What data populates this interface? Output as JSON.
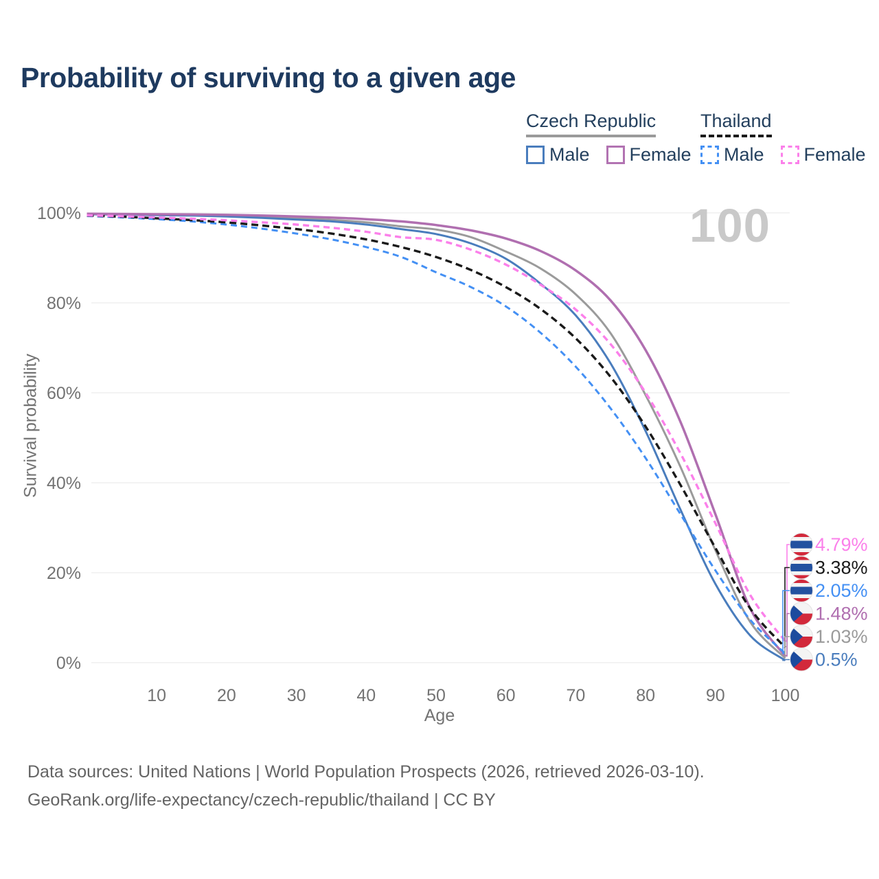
{
  "title": "Probability of surviving to a given age",
  "legend": {
    "groups": [
      {
        "label": "Czech Republic",
        "underline_style": "solid",
        "underline_color": "#9a9a9a",
        "items": [
          {
            "label": "Male",
            "color": "#4a7dbd",
            "dash": false
          },
          {
            "label": "Female",
            "color": "#b273b2",
            "dash": false
          }
        ]
      },
      {
        "label": "Thailand",
        "underline_style": "dashed",
        "underline_color": "#1a1a1a",
        "items": [
          {
            "label": "Male",
            "color": "#4490f4",
            "dash": true
          },
          {
            "label": "Female",
            "color": "#fb80ea",
            "dash": true
          }
        ]
      }
    ]
  },
  "chart_data": {
    "type": "line",
    "title": "Probability of surviving to a given age",
    "xlabel": "Age",
    "ylabel": "Survival probability",
    "annotation": "100",
    "grid": true,
    "xlim": [
      0,
      101
    ],
    "ylim": [
      0,
      100
    ],
    "x_ticks": [
      10,
      20,
      30,
      40,
      50,
      60,
      70,
      80,
      90,
      100
    ],
    "y_ticks": [
      {
        "value": 0,
        "label": "0%"
      },
      {
        "value": 20,
        "label": "20%"
      },
      {
        "value": 40,
        "label": "40%"
      },
      {
        "value": 60,
        "label": "60%"
      },
      {
        "value": 80,
        "label": "80%"
      },
      {
        "value": 100,
        "label": "100%"
      }
    ],
    "ages": [
      0,
      5,
      10,
      15,
      20,
      25,
      30,
      35,
      40,
      45,
      50,
      55,
      60,
      65,
      70,
      75,
      80,
      85,
      90,
      95,
      100
    ],
    "series": [
      {
        "name": "Czech Republic — Total",
        "country": "Czech Republic",
        "sex": "total",
        "color": "#9b9b9b",
        "dash": null,
        "width": 3,
        "flag": "czech",
        "end_label": "1.03%",
        "values": [
          99.75,
          99.68,
          99.6,
          99.5,
          99.35,
          99.1,
          98.8,
          98.45,
          97.9,
          97.0,
          96.3,
          94.6,
          91.4,
          87.6,
          81.9,
          73.2,
          59.5,
          43.5,
          25.0,
          9.0,
          1.03
        ]
      },
      {
        "name": "Czech Republic — Male",
        "country": "Czech Republic",
        "sex": "male",
        "color": "#4a7dbd",
        "dash": null,
        "width": 3,
        "flag": "czech",
        "end_label": "0.5%",
        "values": [
          99.7,
          99.6,
          99.5,
          99.4,
          99.2,
          98.9,
          98.5,
          98.1,
          97.4,
          96.4,
          95.3,
          93.2,
          89.8,
          84.2,
          77.2,
          66.5,
          51.5,
          34.0,
          17.5,
          6.0,
          0.5
        ]
      },
      {
        "name": "Czech Republic — Female",
        "country": "Czech Republic",
        "sex": "female",
        "color": "#b06fb0",
        "dash": null,
        "width": 3.5,
        "flag": "czech",
        "end_label": "1.48%",
        "values": [
          99.8,
          99.75,
          99.7,
          99.65,
          99.55,
          99.4,
          99.2,
          98.95,
          98.6,
          98.1,
          97.3,
          96.1,
          94.3,
          91.5,
          87.2,
          80.5,
          69.5,
          53.5,
          33.0,
          12.0,
          1.48
        ]
      },
      {
        "name": "Thailand — Male",
        "country": "Thailand",
        "sex": "male",
        "color": "#4490f4",
        "dash": "9 6",
        "width": 3,
        "flag": "thailand",
        "end_label": "2.05%",
        "values": [
          99.3,
          99.0,
          98.6,
          98.1,
          97.4,
          96.5,
          95.4,
          94.1,
          92.4,
          90.2,
          86.8,
          83.5,
          79.2,
          73.3,
          65.8,
          56.5,
          45.5,
          33.0,
          20.5,
          9.5,
          2.05
        ]
      },
      {
        "name": "Thailand — Total",
        "country": "Thailand",
        "sex": "total",
        "color": "#1a1a1a",
        "dash": "10 6",
        "width": 3.4,
        "flag": "thailand",
        "end_label": "3.38%",
        "values": [
          99.4,
          99.15,
          98.8,
          98.4,
          97.9,
          97.2,
          96.4,
          95.4,
          94.1,
          92.4,
          90.2,
          87.3,
          83.5,
          78.6,
          72.1,
          63.5,
          52.5,
          39.5,
          25.5,
          12.0,
          3.38
        ]
      },
      {
        "name": "Thailand — Female",
        "country": "Thailand",
        "sex": "female",
        "color": "#fb80ea",
        "dash": "9 6",
        "width": 3.4,
        "flag": "thailand",
        "end_label": "4.79%",
        "values": [
          99.45,
          99.25,
          99.0,
          98.7,
          98.35,
          97.9,
          97.4,
          96.7,
          95.8,
          94.6,
          94.0,
          91.8,
          88.5,
          84.0,
          78.5,
          70.8,
          60.0,
          46.5,
          31.0,
          15.0,
          4.79
        ]
      }
    ],
    "flag_colors": {
      "czech": {
        "white": "#f4f4f4",
        "red": "#d2293b",
        "blue": "#1c4b9e"
      },
      "thailand": {
        "white": "#f4f4f4",
        "red": "#d2293b",
        "blue": "#2351a0"
      }
    }
  },
  "footer": {
    "line1": "Data sources: United Nations | World Population Prospects (2026, retrieved 2026-03-10).",
    "line2": "GeoRank.org/life-expectancy/czech-republic/thailand | CC BY"
  }
}
